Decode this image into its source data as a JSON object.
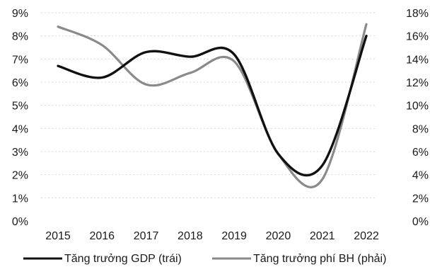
{
  "chart_data": {
    "type": "line",
    "title": "",
    "x": [
      "2015",
      "2016",
      "2017",
      "2018",
      "2019",
      "2020",
      "2021",
      "2022"
    ],
    "y_left": {
      "ticks": [
        "0%",
        "1%",
        "2%",
        "3%",
        "4%",
        "5%",
        "6%",
        "7%",
        "8%",
        "9%"
      ],
      "min": 0,
      "max": 9
    },
    "y_right": {
      "ticks": [
        "0%",
        "2%",
        "4%",
        "6%",
        "8%",
        "10%",
        "12%",
        "14%",
        "16%",
        "18%"
      ],
      "min": 0,
      "max": 18
    },
    "grid": true,
    "legend_position": "bottom",
    "series": [
      {
        "name": "Tăng trưởng GDP (trái)",
        "axis": "left",
        "color": "#111111",
        "values": [
          6.7,
          6.2,
          7.3,
          7.1,
          7.2,
          2.9,
          2.4,
          8.0
        ]
      },
      {
        "name": "Tăng trưởng phí BH (phải)",
        "axis": "right",
        "color": "#8a8a8a",
        "values": [
          16.8,
          15.2,
          11.8,
          12.8,
          13.8,
          5.8,
          3.6,
          17.0
        ]
      }
    ]
  }
}
